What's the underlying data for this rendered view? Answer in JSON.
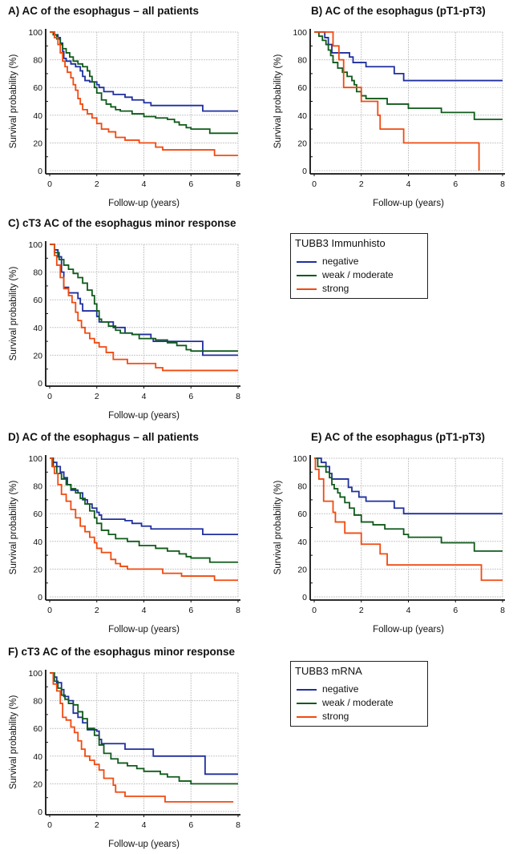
{
  "colors": {
    "negative": "#1f2f9e",
    "weak_moderate": "#0f5a1a",
    "strong": "#f04a10"
  },
  "legends": [
    {
      "title": "TUBB3 Immunhisto",
      "items": [
        {
          "key": "negative",
          "label": "negative"
        },
        {
          "key": "weak_moderate",
          "label": "weak / moderate"
        },
        {
          "key": "strong",
          "label": "strong"
        }
      ]
    },
    {
      "title": "TUBB3 mRNA",
      "items": [
        {
          "key": "negative",
          "label": "negative"
        },
        {
          "key": "weak_moderate",
          "label": "weak / moderate"
        },
        {
          "key": "strong",
          "label": "strong"
        }
      ]
    }
  ],
  "chart_data": [
    {
      "id": "A",
      "type": "line",
      "step": true,
      "title": "A) AC of the esophagus – all patients",
      "xlabel": "Follow-up (years)",
      "ylabel": "Survival probability (%)",
      "xlim": [
        0,
        8
      ],
      "ylim": [
        0,
        100
      ],
      "xticks": [
        0,
        2,
        4,
        6,
        8
      ],
      "yticks": [
        0,
        20,
        40,
        60,
        80,
        100
      ],
      "grid": true,
      "series": [
        {
          "name": "negative",
          "key": "negative",
          "x": [
            0,
            0.2,
            0.35,
            0.45,
            0.55,
            0.6,
            0.7,
            0.9,
            1.1,
            1.3,
            1.4,
            1.5,
            1.7,
            1.9,
            2.0,
            2.1,
            2.3,
            2.7,
            3.2,
            3.5,
            4.0,
            4.3,
            6.5,
            8.0
          ],
          "y": [
            100,
            98,
            96,
            92,
            86,
            81,
            79,
            77,
            75,
            72,
            68,
            65,
            64,
            64,
            62,
            60,
            57,
            55,
            53,
            51,
            49,
            47,
            43,
            43
          ]
        },
        {
          "name": "weak / moderate",
          "key": "weak_moderate",
          "x": [
            0,
            0.15,
            0.3,
            0.45,
            0.55,
            0.7,
            0.85,
            1.0,
            1.2,
            1.4,
            1.6,
            1.7,
            1.8,
            1.9,
            2.0,
            2.2,
            2.4,
            2.6,
            2.8,
            3.0,
            3.5,
            4.0,
            4.5,
            5.0,
            5.3,
            5.5,
            5.8,
            6.0,
            6.5,
            6.8,
            7.0,
            8.0
          ],
          "y": [
            100,
            98,
            95,
            91,
            88,
            85,
            82,
            79,
            77,
            75,
            72,
            68,
            64,
            60,
            56,
            51,
            48,
            46,
            44,
            43,
            41,
            39,
            38,
            37,
            35,
            33,
            31,
            30,
            30,
            27,
            27,
            27
          ]
        },
        {
          "name": "strong",
          "key": "strong",
          "x": [
            0,
            0.2,
            0.35,
            0.45,
            0.55,
            0.65,
            0.75,
            0.9,
            1.0,
            1.1,
            1.2,
            1.3,
            1.4,
            1.6,
            1.8,
            2.0,
            2.2,
            2.5,
            2.8,
            3.2,
            3.8,
            4.5,
            4.8,
            6.0,
            7.0,
            8.0
          ],
          "y": [
            100,
            96,
            91,
            85,
            79,
            75,
            71,
            67,
            62,
            58,
            52,
            48,
            44,
            41,
            38,
            34,
            30,
            28,
            24,
            22,
            20,
            17,
            15,
            15,
            11,
            11
          ]
        }
      ]
    },
    {
      "id": "B",
      "type": "line",
      "step": true,
      "title": "B) AC of the esophagus (pT1-pT3)",
      "xlabel": "Follow-up (years)",
      "ylabel": "Survival probability (%)",
      "xlim": [
        0,
        8
      ],
      "ylim": [
        0,
        100
      ],
      "xticks": [
        0,
        2,
        4,
        6,
        8
      ],
      "yticks": [
        0,
        20,
        40,
        60,
        80,
        100
      ],
      "grid": true,
      "series": [
        {
          "name": "negative",
          "key": "negative",
          "x": [
            0,
            0.45,
            0.6,
            0.75,
            1.5,
            1.65,
            2.2,
            3.4,
            3.8,
            8.0
          ],
          "y": [
            100,
            96,
            91,
            85,
            82,
            78,
            75,
            70,
            65,
            65
          ]
        },
        {
          "name": "weak / moderate",
          "key": "weak_moderate",
          "x": [
            0,
            0.2,
            0.35,
            0.5,
            0.6,
            0.7,
            0.8,
            1.0,
            1.2,
            1.4,
            1.6,
            1.7,
            1.8,
            2.0,
            2.2,
            3.1,
            4.0,
            5.4,
            6.8,
            8.0
          ],
          "y": [
            100,
            97,
            94,
            91,
            87,
            83,
            78,
            74,
            71,
            68,
            65,
            62,
            57,
            54,
            52,
            48,
            45,
            42,
            37,
            37
          ]
        },
        {
          "name": "strong",
          "key": "strong",
          "x": [
            0,
            0.8,
            1.05,
            1.25,
            2.0,
            2.7,
            2.8,
            3.8,
            7.0,
            7.0
          ],
          "y": [
            100,
            90,
            80,
            60,
            50,
            40,
            30,
            20,
            20,
            0
          ]
        }
      ]
    },
    {
      "id": "C",
      "type": "line",
      "step": true,
      "title": "C) cT3 AC of the esophagus minor response",
      "xlabel": "Follow-up (years)",
      "ylabel": "Survival probability (%)",
      "xlim": [
        0,
        8
      ],
      "ylim": [
        0,
        100
      ],
      "xticks": [
        0,
        2,
        4,
        6,
        8
      ],
      "yticks": [
        0,
        20,
        40,
        60,
        80,
        100
      ],
      "grid": true,
      "series": [
        {
          "name": "negative",
          "key": "negative",
          "x": [
            0,
            0.2,
            0.35,
            0.5,
            0.6,
            0.8,
            1.2,
            1.3,
            1.4,
            2.0,
            2.1,
            2.2,
            2.7,
            3.2,
            3.5,
            4.3,
            4.4,
            6.5,
            8.0
          ],
          "y": [
            100,
            96,
            91,
            80,
            69,
            65,
            61,
            57,
            52,
            48,
            44,
            44,
            40,
            36,
            35,
            32,
            30,
            20,
            20
          ]
        },
        {
          "name": "weak / moderate",
          "key": "weak_moderate",
          "x": [
            0,
            0.2,
            0.4,
            0.6,
            0.8,
            1.0,
            1.2,
            1.4,
            1.6,
            1.8,
            1.9,
            2.0,
            2.1,
            2.2,
            2.5,
            2.8,
            3.0,
            3.5,
            3.8,
            4.5,
            5.0,
            5.4,
            5.8,
            6.0,
            8.0
          ],
          "y": [
            100,
            94,
            89,
            85,
            82,
            79,
            76,
            72,
            67,
            63,
            57,
            52,
            46,
            44,
            41,
            38,
            36,
            35,
            32,
            31,
            29,
            27,
            24,
            23,
            23
          ]
        },
        {
          "name": "strong",
          "key": "strong",
          "x": [
            0,
            0.2,
            0.3,
            0.45,
            0.6,
            0.8,
            0.95,
            1.1,
            1.2,
            1.35,
            1.5,
            1.7,
            1.9,
            2.1,
            2.4,
            2.7,
            3.3,
            4.5,
            4.8,
            8.0
          ],
          "y": [
            100,
            92,
            85,
            76,
            68,
            63,
            58,
            51,
            45,
            40,
            36,
            32,
            29,
            26,
            22,
            17,
            14,
            11,
            9,
            9
          ]
        }
      ]
    },
    {
      "id": "D",
      "type": "line",
      "step": true,
      "title": "D) AC of the esophagus – all patients",
      "xlabel": "Follow-up (years)",
      "ylabel": "Survival probability (%)",
      "xlim": [
        0,
        8
      ],
      "ylim": [
        0,
        100
      ],
      "xticks": [
        0,
        2,
        4,
        6,
        8
      ],
      "yticks": [
        0,
        20,
        40,
        60,
        80,
        100
      ],
      "grid": true,
      "series": [
        {
          "name": "negative",
          "key": "negative",
          "x": [
            0,
            0.15,
            0.3,
            0.45,
            0.6,
            0.75,
            0.9,
            1.2,
            1.4,
            1.6,
            1.8,
            2.0,
            2.1,
            2.2,
            3.2,
            3.5,
            3.9,
            4.3,
            6.5,
            8.0
          ],
          "y": [
            100,
            97,
            94,
            90,
            86,
            81,
            77,
            75,
            70,
            67,
            64,
            61,
            59,
            56,
            55,
            53,
            51,
            49,
            45,
            45
          ]
        },
        {
          "name": "weak / moderate",
          "key": "weak_moderate",
          "x": [
            0,
            0.15,
            0.3,
            0.5,
            0.7,
            0.9,
            1.1,
            1.3,
            1.5,
            1.7,
            1.9,
            2.0,
            2.2,
            2.5,
            2.8,
            3.3,
            3.8,
            4.5,
            5.0,
            5.5,
            5.8,
            6.0,
            6.8,
            8.0
          ],
          "y": [
            100,
            94,
            89,
            85,
            81,
            78,
            75,
            71,
            67,
            62,
            57,
            53,
            48,
            45,
            42,
            40,
            37,
            35,
            33,
            31,
            29,
            28,
            25,
            25
          ]
        },
        {
          "name": "strong",
          "key": "strong",
          "x": [
            0,
            0.1,
            0.2,
            0.35,
            0.5,
            0.7,
            0.9,
            1.1,
            1.3,
            1.5,
            1.7,
            1.9,
            2.0,
            2.2,
            2.6,
            2.8,
            3.0,
            3.3,
            4.8,
            5.6,
            7.0,
            8.0
          ],
          "y": [
            100,
            94,
            89,
            81,
            74,
            69,
            63,
            57,
            51,
            47,
            43,
            39,
            35,
            32,
            27,
            24,
            22,
            20,
            17,
            15,
            12,
            12
          ]
        }
      ]
    },
    {
      "id": "E",
      "type": "line",
      "step": true,
      "title": "E) AC of the esophagus (pT1-pT3)",
      "xlabel": "Follow-up (years)",
      "ylabel": "Survival probability (%)",
      "xlim": [
        0,
        8
      ],
      "ylim": [
        0,
        100
      ],
      "xticks": [
        0,
        2,
        4,
        6,
        8
      ],
      "yticks": [
        0,
        20,
        40,
        60,
        80,
        100
      ],
      "grid": true,
      "series": [
        {
          "name": "negative",
          "key": "negative",
          "x": [
            0,
            0.3,
            0.5,
            0.65,
            0.75,
            1.45,
            1.6,
            1.9,
            2.2,
            3.4,
            3.8,
            8.0
          ],
          "y": [
            100,
            97,
            94,
            89,
            85,
            79,
            76,
            72,
            69,
            64,
            60,
            60
          ]
        },
        {
          "name": "weak / moderate",
          "key": "weak_moderate",
          "x": [
            0,
            0.15,
            0.5,
            0.65,
            0.75,
            0.85,
            1.0,
            1.1,
            1.3,
            1.5,
            1.7,
            2.0,
            2.5,
            3.0,
            3.8,
            4.0,
            5.4,
            6.8,
            8.0
          ],
          "y": [
            100,
            94,
            90,
            86,
            81,
            78,
            75,
            72,
            68,
            64,
            59,
            54,
            52,
            49,
            45,
            43,
            39,
            33,
            33
          ]
        },
        {
          "name": "strong",
          "key": "strong",
          "x": [
            0,
            0.05,
            0.2,
            0.4,
            0.8,
            0.9,
            1.3,
            2.0,
            2.8,
            3.1,
            7.1,
            8.0
          ],
          "y": [
            100,
            92,
            85,
            69,
            61,
            54,
            46,
            38,
            31,
            23,
            12,
            12
          ]
        }
      ]
    },
    {
      "id": "F",
      "type": "line",
      "step": true,
      "title": "F) cT3 AC of the esophagus minor response",
      "xlabel": "Follow-up (years)",
      "ylabel": "Survival probability (%)",
      "xlim": [
        0,
        8
      ],
      "ylim": [
        0,
        100
      ],
      "xticks": [
        0,
        2,
        4,
        6,
        8
      ],
      "yticks": [
        0,
        20,
        40,
        60,
        80,
        100
      ],
      "grid": true,
      "series": [
        {
          "name": "negative",
          "key": "negative",
          "x": [
            0,
            0.15,
            0.3,
            0.5,
            0.6,
            0.8,
            1.0,
            1.2,
            1.4,
            1.6,
            2.0,
            2.1,
            2.2,
            3.2,
            4.4,
            6.6,
            8.0
          ],
          "y": [
            100,
            97,
            93,
            88,
            83,
            80,
            71,
            68,
            64,
            59,
            58,
            52,
            49,
            45,
            40,
            27,
            27
          ]
        },
        {
          "name": "weak / moderate",
          "key": "weak_moderate",
          "x": [
            0,
            0.2,
            0.35,
            0.5,
            0.65,
            0.8,
            1.0,
            1.2,
            1.4,
            1.6,
            1.9,
            2.1,
            2.3,
            2.6,
            2.9,
            3.3,
            3.7,
            4.0,
            4.7,
            5.0,
            5.5,
            6.0,
            8.0
          ],
          "y": [
            100,
            94,
            89,
            84,
            81,
            78,
            77,
            72,
            67,
            60,
            55,
            48,
            42,
            38,
            35,
            33,
            31,
            29,
            27,
            25,
            22,
            20,
            20
          ]
        },
        {
          "name": "strong",
          "key": "strong",
          "x": [
            0,
            0.15,
            0.3,
            0.45,
            0.55,
            0.7,
            0.9,
            1.05,
            1.2,
            1.35,
            1.5,
            1.7,
            1.9,
            2.1,
            2.3,
            2.7,
            2.8,
            3.2,
            4.9,
            7.8
          ],
          "y": [
            100,
            92,
            87,
            78,
            68,
            66,
            61,
            57,
            51,
            45,
            40,
            37,
            34,
            30,
            24,
            19,
            14,
            11,
            7,
            7
          ]
        }
      ]
    }
  ]
}
